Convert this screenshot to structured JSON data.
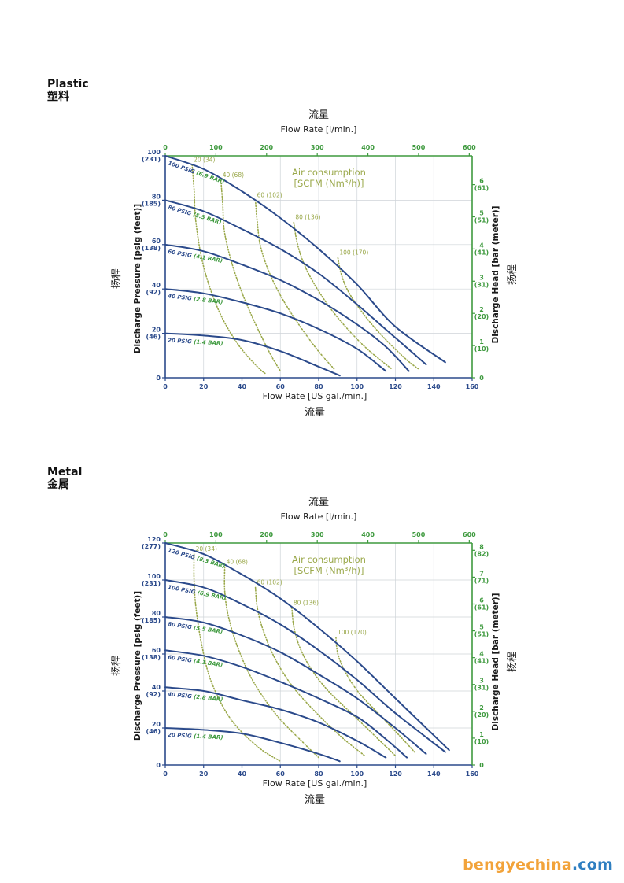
{
  "colors": {
    "blue": "#2b4a8b",
    "green": "#3f9a3f",
    "olive": "#9aa84a",
    "grid": "#cfd4d9",
    "ink": "#1a1a1a"
  },
  "brand": {
    "part1": "bengyechina",
    "part2": ".com"
  },
  "chart_data": [
    {
      "type": "line",
      "section_title_en": "Plastic",
      "section_title_cn": "塑料",
      "top_axis_cn": "流量",
      "top_axis_label": "Flow Rate  [l/min.]",
      "top_ticks": [
        "0",
        "100",
        "200",
        "300",
        "400",
        "500",
        "600"
      ],
      "bottom_axis_label": "Flow Rate [US gal./min.]",
      "bottom_axis_cn": "流量",
      "x_ticks": [
        "0",
        "20",
        "40",
        "60",
        "80",
        "100",
        "120",
        "140",
        "160"
      ],
      "xlim": [
        0,
        160
      ],
      "ylim": [
        0,
        100
      ],
      "left_axis_label": "Discharge Pressure [psig (feet)]",
      "left_axis_cn": "扬程",
      "y_ticks": [
        {
          "v": 0,
          "main": "0",
          "sub": ""
        },
        {
          "v": 20,
          "main": "20",
          "sub": "(46)"
        },
        {
          "v": 40,
          "main": "40",
          "sub": "(92)"
        },
        {
          "v": 60,
          "main": "60",
          "sub": "(138)"
        },
        {
          "v": 80,
          "main": "80",
          "sub": "(185)"
        },
        {
          "v": 100,
          "main": "100",
          "sub": "(231)"
        }
      ],
      "right_axis_label": "Discharge Head [bar (meter)]",
      "right_axis_cn": "扬程",
      "right_ticks": [
        {
          "bar": 0,
          "main": "0",
          "sub": ""
        },
        {
          "bar": 1,
          "main": "1",
          "sub": "(10)"
        },
        {
          "bar": 2,
          "main": "2",
          "sub": "(20)"
        },
        {
          "bar": 3,
          "main": "3",
          "sub": "(31)"
        },
        {
          "bar": 4,
          "main": "4",
          "sub": "(41)"
        },
        {
          "bar": 5,
          "main": "5",
          "sub": "(51)"
        },
        {
          "bar": 6,
          "main": "6",
          "sub": "(61)"
        }
      ],
      "air_title": "Air consumption",
      "air_sub": "[SCFM (Nm³/h)]",
      "series": [
        {
          "name": "100 PSIG (6.9 BAR)",
          "points": [
            [
              0,
              100
            ],
            [
              20,
              94
            ],
            [
              40,
              84
            ],
            [
              60,
              72
            ],
            [
              80,
              58
            ],
            [
              100,
              42
            ],
            [
              120,
              23
            ],
            [
              146,
              7
            ]
          ]
        },
        {
          "name": "80 PSIG (5.5 BAR)",
          "points": [
            [
              0,
              80
            ],
            [
              20,
              75
            ],
            [
              40,
              67
            ],
            [
              60,
              58
            ],
            [
              80,
              47
            ],
            [
              100,
              33
            ],
            [
              120,
              18
            ],
            [
              136,
              6
            ]
          ]
        },
        {
          "name": "60 PSIG (4.1 BAR)",
          "points": [
            [
              0,
              60
            ],
            [
              20,
              57
            ],
            [
              40,
              51
            ],
            [
              60,
              44
            ],
            [
              80,
              35
            ],
            [
              100,
              24
            ],
            [
              115,
              14
            ],
            [
              127,
              3
            ]
          ]
        },
        {
          "name": "40 PSIG (2.8 BAR)",
          "points": [
            [
              0,
              40
            ],
            [
              20,
              38
            ],
            [
              40,
              34
            ],
            [
              60,
              29
            ],
            [
              80,
              22
            ],
            [
              100,
              13
            ],
            [
              115,
              3
            ]
          ]
        },
        {
          "name": "20 PSIG (1.4 BAR)",
          "points": [
            [
              0,
              20
            ],
            [
              20,
              19
            ],
            [
              40,
              17
            ],
            [
              60,
              12
            ],
            [
              80,
              5
            ],
            [
              91,
              1
            ]
          ]
        }
      ],
      "air_curves": [
        {
          "label": "20 (34)",
          "points": [
            [
              14,
              96
            ],
            [
              15,
              85
            ],
            [
              16,
              70
            ],
            [
              20,
              50
            ],
            [
              28,
              30
            ],
            [
              38,
              15
            ],
            [
              48,
              5
            ],
            [
              52,
              2
            ]
          ]
        },
        {
          "label": "40 (68)",
          "points": [
            [
              29,
              89
            ],
            [
              30,
              78
            ],
            [
              31,
              65
            ],
            [
              36,
              48
            ],
            [
              44,
              30
            ],
            [
              54,
              12
            ],
            [
              60,
              3
            ]
          ]
        },
        {
          "label": "60 (102)",
          "points": [
            [
              47,
              80
            ],
            [
              48,
              70
            ],
            [
              50,
              58
            ],
            [
              56,
              44
            ],
            [
              65,
              30
            ],
            [
              78,
              14
            ],
            [
              88,
              4
            ]
          ]
        },
        {
          "label": "80 (136)",
          "points": [
            [
              67,
              70
            ],
            [
              69,
              60
            ],
            [
              73,
              50
            ],
            [
              80,
              39
            ],
            [
              90,
              27
            ],
            [
              104,
              14
            ],
            [
              118,
              4
            ]
          ]
        },
        {
          "label": "100 (170)",
          "points": [
            [
              90,
              54
            ],
            [
              92,
              46
            ],
            [
              96,
              38
            ],
            [
              104,
              28
            ],
            [
              114,
              18
            ],
            [
              126,
              8
            ],
            [
              132,
              4
            ]
          ]
        }
      ]
    },
    {
      "type": "line",
      "section_title_en": "Metal",
      "section_title_cn": "金属",
      "top_axis_cn": "流量",
      "top_axis_label": "Flow Rate  [l/min.]",
      "top_ticks": [
        "0",
        "100",
        "200",
        "300",
        "400",
        "500",
        "600"
      ],
      "bottom_axis_label": "Flow Rate [US gal./min.]",
      "bottom_axis_cn": "流量",
      "x_ticks": [
        "0",
        "20",
        "40",
        "60",
        "80",
        "100",
        "120",
        "140",
        "160"
      ],
      "xlim": [
        0,
        160
      ],
      "ylim": [
        0,
        120
      ],
      "left_axis_label": "Discharge Pressure [psig (feet)]",
      "left_axis_cn": "扬程",
      "y_ticks": [
        {
          "v": 0,
          "main": "0",
          "sub": ""
        },
        {
          "v": 20,
          "main": "20",
          "sub": "(46)"
        },
        {
          "v": 40,
          "main": "40",
          "sub": "(92)"
        },
        {
          "v": 60,
          "main": "60",
          "sub": "(138)"
        },
        {
          "v": 80,
          "main": "80",
          "sub": "(185)"
        },
        {
          "v": 100,
          "main": "100",
          "sub": "(231)"
        },
        {
          "v": 120,
          "main": "120",
          "sub": "(277)"
        }
      ],
      "right_axis_label": "Discharge Head [bar (meter)]",
      "right_axis_cn": "扬程",
      "right_ticks": [
        {
          "bar": 0,
          "main": "0",
          "sub": ""
        },
        {
          "bar": 1,
          "main": "1",
          "sub": "(10)"
        },
        {
          "bar": 2,
          "main": "2",
          "sub": "(20)"
        },
        {
          "bar": 3,
          "main": "3",
          "sub": "(31)"
        },
        {
          "bar": 4,
          "main": "4",
          "sub": "(41)"
        },
        {
          "bar": 5,
          "main": "5",
          "sub": "(51)"
        },
        {
          "bar": 6,
          "main": "6",
          "sub": "(61)"
        },
        {
          "bar": 7,
          "main": "7",
          "sub": "(71)"
        },
        {
          "bar": 8,
          "main": "8",
          "sub": "(82)"
        }
      ],
      "air_title": "Air consumption",
      "air_sub": "[SCFM (Nm³/h)]",
      "series": [
        {
          "name": "120 PSIG (8.3 BAR)",
          "points": [
            [
              0,
              120
            ],
            [
              20,
              114
            ],
            [
              40,
              103
            ],
            [
              60,
              90
            ],
            [
              80,
              74
            ],
            [
              100,
              56
            ],
            [
              120,
              36
            ],
            [
              148,
              8
            ]
          ]
        },
        {
          "name": "100 PSIG (6.9 BAR)",
          "points": [
            [
              0,
              100
            ],
            [
              20,
              96
            ],
            [
              40,
              87
            ],
            [
              60,
              76
            ],
            [
              80,
              62
            ],
            [
              100,
              46
            ],
            [
              120,
              28
            ],
            [
              146,
              7
            ]
          ]
        },
        {
          "name": "80 PSIG (5.5 BAR)",
          "points": [
            [
              0,
              80
            ],
            [
              20,
              77
            ],
            [
              40,
              70
            ],
            [
              60,
              61
            ],
            [
              80,
              49
            ],
            [
              100,
              36
            ],
            [
              120,
              20
            ],
            [
              136,
              6
            ]
          ]
        },
        {
          "name": "60 PSIG (4.1 BAR)",
          "points": [
            [
              0,
              62
            ],
            [
              20,
              59
            ],
            [
              40,
              53
            ],
            [
              60,
              45
            ],
            [
              80,
              36
            ],
            [
              100,
              26
            ],
            [
              115,
              14
            ],
            [
              126,
              4
            ]
          ]
        },
        {
          "name": "40 PSIG (2.8 BAR)",
          "points": [
            [
              0,
              42
            ],
            [
              20,
              40
            ],
            [
              40,
              35
            ],
            [
              60,
              30
            ],
            [
              80,
              23
            ],
            [
              100,
              13
            ],
            [
              115,
              4
            ]
          ]
        },
        {
          "name": "20 PSIG (1.4 BAR)",
          "points": [
            [
              0,
              20
            ],
            [
              20,
              19
            ],
            [
              40,
              17
            ],
            [
              60,
              12
            ],
            [
              80,
              6
            ],
            [
              91,
              2
            ]
          ]
        }
      ],
      "air_curves": [
        {
          "label": "20 (34)",
          "points": [
            [
              15,
              114
            ],
            [
              15,
              100
            ],
            [
              16,
              85
            ],
            [
              19,
              65
            ],
            [
              24,
              45
            ],
            [
              34,
              25
            ],
            [
              48,
              10
            ],
            [
              60,
              2
            ]
          ]
        },
        {
          "label": "40 (68)",
          "points": [
            [
              31,
              107
            ],
            [
              31,
              94
            ],
            [
              33,
              80
            ],
            [
              38,
              63
            ],
            [
              46,
              45
            ],
            [
              58,
              27
            ],
            [
              72,
              12
            ],
            [
              80,
              4
            ]
          ]
        },
        {
          "label": "60 (102)",
          "points": [
            [
              47,
              96
            ],
            [
              48,
              85
            ],
            [
              51,
              73
            ],
            [
              57,
              58
            ],
            [
              66,
              43
            ],
            [
              78,
              29
            ],
            [
              92,
              15
            ],
            [
              104,
              5
            ]
          ]
        },
        {
          "label": "80 (136)",
          "points": [
            [
              66,
              85
            ],
            [
              67,
              75
            ],
            [
              70,
              64
            ],
            [
              76,
              52
            ],
            [
              85,
              40
            ],
            [
              97,
              28
            ],
            [
              110,
              15
            ],
            [
              120,
              5
            ]
          ]
        },
        {
          "label": "100 (170)",
          "points": [
            [
              89,
              69
            ],
            [
              90,
              60
            ],
            [
              94,
              50
            ],
            [
              101,
              39
            ],
            [
              111,
              28
            ],
            [
              122,
              16
            ],
            [
              130,
              7
            ]
          ]
        }
      ]
    }
  ]
}
